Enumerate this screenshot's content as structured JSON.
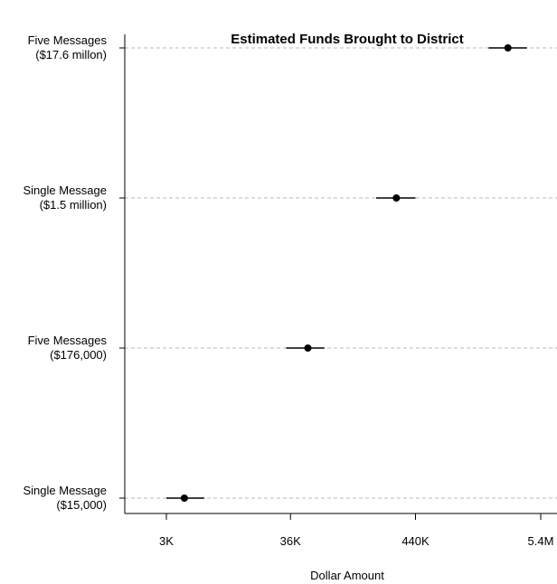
{
  "chart_data": {
    "type": "scatter",
    "title": "Estimated Funds Brought to District",
    "xlabel": "Dollar Amount",
    "ylabel": "",
    "x_scale": "log10",
    "xlim": [
      2000,
      6000000
    ],
    "x_ticks": [
      3000,
      36000,
      440000,
      5400000
    ],
    "x_tick_labels": [
      "3K",
      "36K",
      "440K",
      "5.4M"
    ],
    "grid": "horizontal dashed reference lines at each category",
    "categories": [
      {
        "line1": "Five Messages",
        "line2": "($17.6 millon)"
      },
      {
        "line1": "Single Message",
        "line2": "($1.5 million)"
      },
      {
        "line1": "Five Messages",
        "line2": "($176,000)"
      },
      {
        "line1": "Single Message",
        "line2": "($15,000)"
      }
    ],
    "points": [
      {
        "estimate": 2800000,
        "lower": 1900000,
        "upper": 4100000
      },
      {
        "estimate": 300000,
        "lower": 200000,
        "upper": 440000
      },
      {
        "estimate": 51000,
        "lower": 33000,
        "upper": 71000
      },
      {
        "estimate": 4300,
        "lower": 3000,
        "upper": 6400
      }
    ],
    "colors": {
      "points": "#000000",
      "reference_lines": "#bbbbbb"
    }
  }
}
